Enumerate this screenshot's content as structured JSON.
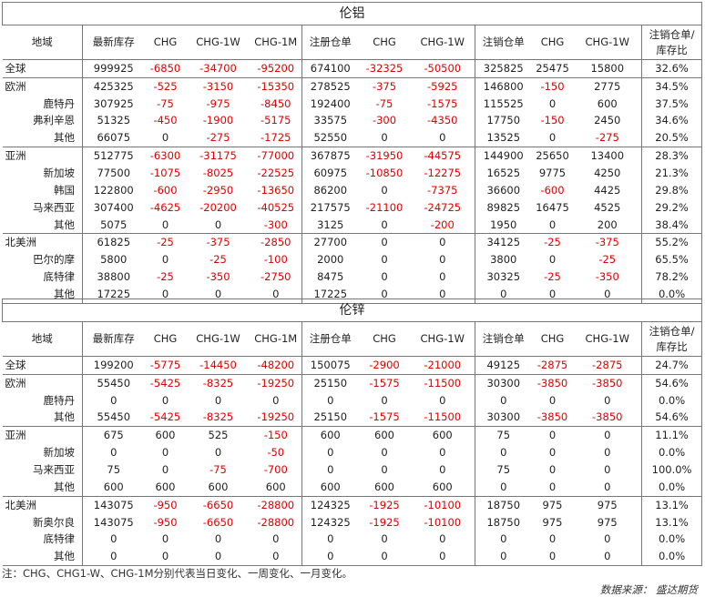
{
  "columns": [
    "地域",
    "最新库存",
    "CHG",
    "CHG-1W",
    "CHG-1M",
    "注册仓单",
    "CHG",
    "CHG-1W",
    "注销仓单",
    "CHG",
    "CHG-1W",
    "注销仓单/库存比"
  ],
  "sections": [
    {
      "title": "伦铝",
      "groups": [
        [
          {
            "region": "全球",
            "values": [
              "999925",
              "-6850",
              "-34700",
              "-95200",
              "674100",
              "-32325",
              "-50500",
              "325825",
              "25475",
              "15800",
              "32.6%"
            ]
          }
        ],
        [
          {
            "region": "欧洲",
            "values": [
              "425325",
              "-525",
              "-3150",
              "-15350",
              "278525",
              "-375",
              "-5925",
              "146800",
              "-150",
              "2775",
              "34.5%"
            ]
          },
          {
            "region": "鹿特丹",
            "values": [
              "307925",
              "-75",
              "-975",
              "-8450",
              "192400",
              "-75",
              "-1575",
              "115525",
              "0",
              "600",
              "37.5%"
            ]
          },
          {
            "region": "弗利辛恩",
            "values": [
              "51325",
              "-450",
              "-1900",
              "-5175",
              "33575",
              "-300",
              "-4350",
              "17750",
              "-150",
              "2450",
              "34.6%"
            ]
          },
          {
            "region": "其他",
            "values": [
              "66075",
              "0",
              "-275",
              "-1725",
              "52550",
              "0",
              "0",
              "13525",
              "0",
              "-275",
              "20.5%"
            ]
          }
        ],
        [
          {
            "region": "亚洲",
            "values": [
              "512775",
              "-6300",
              "-31175",
              "-77000",
              "367875",
              "-31950",
              "-44575",
              "144900",
              "25650",
              "13400",
              "28.3%"
            ]
          },
          {
            "region": "新加坡",
            "values": [
              "77500",
              "-1075",
              "-8025",
              "-22525",
              "60975",
              "-10850",
              "-12275",
              "16525",
              "9775",
              "4250",
              "21.3%"
            ]
          },
          {
            "region": "韩国",
            "values": [
              "122800",
              "-600",
              "-2950",
              "-13650",
              "86200",
              "0",
              "-7375",
              "36600",
              "-600",
              "4425",
              "29.8%"
            ]
          },
          {
            "region": "马来西亚",
            "values": [
              "307400",
              "-4625",
              "-20200",
              "-40525",
              "217575",
              "-21100",
              "-24725",
              "89825",
              "16475",
              "4525",
              "29.2%"
            ]
          },
          {
            "region": "其他",
            "values": [
              "5075",
              "0",
              "0",
              "-300",
              "3125",
              "0",
              "-200",
              "1950",
              "0",
              "200",
              "38.4%"
            ]
          }
        ],
        [
          {
            "region": "北美洲",
            "values": [
              "61825",
              "-25",
              "-375",
              "-2850",
              "27700",
              "0",
              "0",
              "34125",
              "-25",
              "-375",
              "55.2%"
            ]
          },
          {
            "region": "巴尔的摩",
            "values": [
              "5800",
              "0",
              "-25",
              "-100",
              "2000",
              "0",
              "0",
              "3800",
              "0",
              "-25",
              "65.5%"
            ]
          },
          {
            "region": "底特律",
            "values": [
              "38800",
              "-25",
              "-350",
              "-2750",
              "8475",
              "0",
              "0",
              "30325",
              "-25",
              "-350",
              "78.2%"
            ]
          },
          {
            "region": "其他",
            "values": [
              "17225",
              "0",
              "0",
              "0",
              "17225",
              "0",
              "0",
              "0",
              "0",
              "0",
              "0.0%"
            ]
          }
        ]
      ]
    },
    {
      "title": "伦锌",
      "groups": [
        [
          {
            "region": "全球",
            "values": [
              "199200",
              "-5775",
              "-14450",
              "-48200",
              "150075",
              "-2900",
              "-21000",
              "49125",
              "-2875",
              "-2875",
              "24.7%"
            ]
          }
        ],
        [
          {
            "region": "欧洲",
            "values": [
              "55450",
              "-5425",
              "-8325",
              "-19250",
              "25150",
              "-1575",
              "-11500",
              "30300",
              "-3850",
              "-3850",
              "54.6%"
            ]
          },
          {
            "region": "鹿特丹",
            "values": [
              "0",
              "0",
              "0",
              "0",
              "0",
              "0",
              "0",
              "0",
              "0",
              "0",
              "0.0%"
            ]
          },
          {
            "region": "其他",
            "values": [
              "55450",
              "-5425",
              "-8325",
              "-19250",
              "25150",
              "-1575",
              "-11500",
              "30300",
              "-3850",
              "-3850",
              "54.6%"
            ]
          }
        ],
        [
          {
            "region": "亚洲",
            "values": [
              "675",
              "600",
              "525",
              "-150",
              "600",
              "600",
              "600",
              "75",
              "0",
              "0",
              "11.1%"
            ]
          },
          {
            "region": "新加坡",
            "values": [
              "0",
              "0",
              "0",
              "-50",
              "0",
              "0",
              "0",
              "0",
              "0",
              "0",
              "0.0%"
            ]
          },
          {
            "region": "马来西亚",
            "values": [
              "75",
              "0",
              "-75",
              "-700",
              "0",
              "0",
              "0",
              "75",
              "0",
              "0",
              "100.0%"
            ]
          },
          {
            "region": "其他",
            "values": [
              "600",
              "600",
              "600",
              "600",
              "600",
              "600",
              "600",
              "0",
              "0",
              "0",
              "0.0%"
            ]
          }
        ],
        [
          {
            "region": "北美洲",
            "values": [
              "143075",
              "-950",
              "-6650",
              "-28800",
              "124325",
              "-1925",
              "-10100",
              "18750",
              "975",
              "975",
              "13.1%"
            ]
          },
          {
            "region": "新奥尔良",
            "values": [
              "143075",
              "-950",
              "-6650",
              "-28800",
              "124325",
              "-1925",
              "-10100",
              "18750",
              "975",
              "975",
              "13.1%"
            ]
          },
          {
            "region": "底特律",
            "values": [
              "0",
              "0",
              "0",
              "0",
              "0",
              "0",
              "0",
              "0",
              "0",
              "0",
              "0.0%"
            ]
          },
          {
            "region": "其他",
            "values": [
              "0",
              "0",
              "0",
              "0",
              "0",
              "0",
              "0",
              "0",
              "0",
              "0",
              "0.0%"
            ]
          }
        ]
      ]
    }
  ],
  "note": "注：CHG、CHG1-W、CHG-1M分别代表当日变化、一周变化、一月变化。",
  "source": "数据来源： 盛达期货",
  "colors": {
    "negative": "#e00000",
    "text": "#222222",
    "border": "#777777"
  }
}
